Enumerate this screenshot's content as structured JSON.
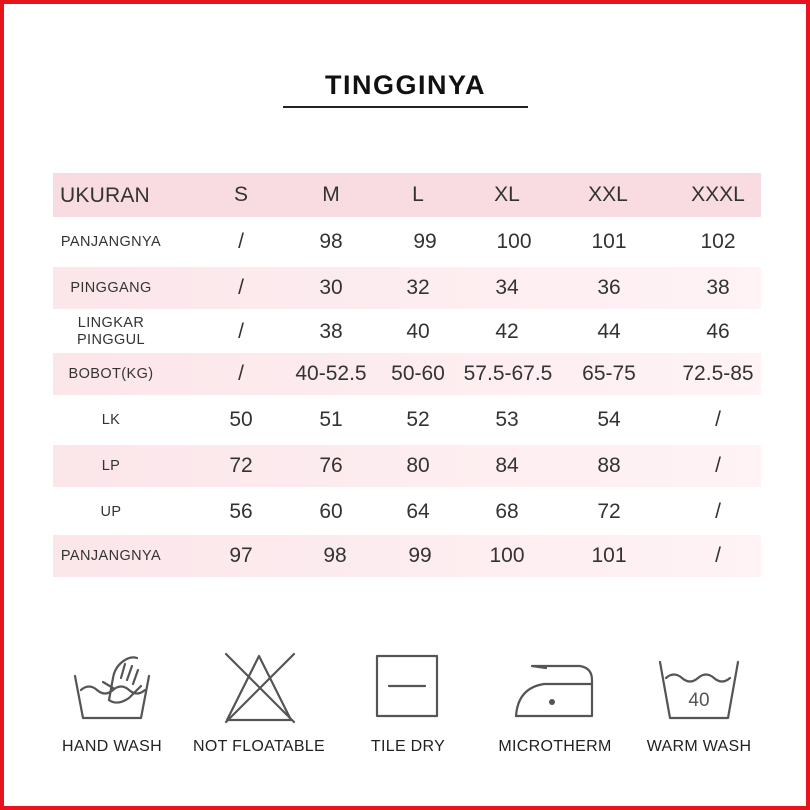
{
  "title": "TINGGINYA",
  "table": {
    "header": {
      "label": "UKURAN",
      "sizes": [
        "S",
        "M",
        "L",
        "XL",
        "XXL",
        "XXXL"
      ]
    },
    "rows": [
      {
        "label": "PANJANGNYA",
        "values": [
          "/",
          "98",
          "99",
          "100",
          "101",
          "102"
        ]
      },
      {
        "label": "PINGGANG",
        "values": [
          "/",
          "30",
          "32",
          "34",
          "36",
          "38"
        ]
      },
      {
        "label": "LINGKAR\nPINGGUL",
        "values": [
          "/",
          "38",
          "40",
          "42",
          "44",
          "46"
        ]
      },
      {
        "label": "BOBOT(KG)",
        "values": [
          "/",
          "40-52.5",
          "50-60",
          "57.5-67.5",
          "65-75",
          "72.5-85"
        ]
      },
      {
        "label": "LK",
        "values": [
          "50",
          "51",
          "52",
          "53",
          "54",
          "/"
        ]
      },
      {
        "label": "LP",
        "values": [
          "72",
          "76",
          "80",
          "84",
          "88",
          "/"
        ]
      },
      {
        "label": "UP",
        "values": [
          "56",
          "60",
          "64",
          "68",
          "72",
          "/"
        ]
      },
      {
        "label": "PANJANGNYA",
        "values": [
          "97",
          "98",
          "99",
          "100",
          "101",
          "/"
        ]
      }
    ]
  },
  "care": [
    {
      "icon": "hand-wash-icon",
      "label": "HAND WASH"
    },
    {
      "icon": "not-floatable-icon",
      "label": "NOT FLOATABLE"
    },
    {
      "icon": "tile-dry-icon",
      "label": "TILE DRY"
    },
    {
      "icon": "iron-icon",
      "label": "MICROTHERM"
    },
    {
      "icon": "warm-wash-icon",
      "label": "WARM WASH",
      "temperature": "40"
    }
  ],
  "colors": {
    "border": "#e8141c",
    "header_band": "#f8dce2",
    "stripe": "#fbe6ea",
    "icon_stroke": "#555555"
  }
}
